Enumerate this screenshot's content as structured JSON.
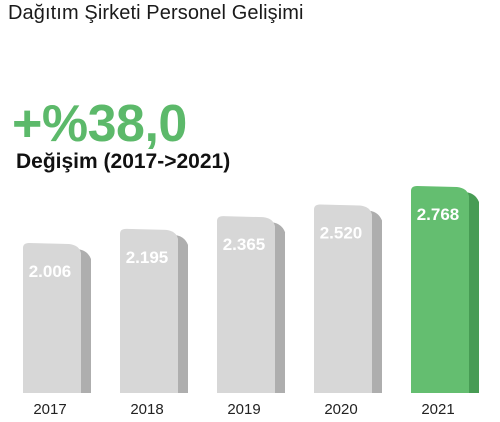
{
  "header": {
    "title": "Dağıtım Şirketi Personel Gelişimi",
    "change_value": "+%38,0",
    "change_label": "Değişim (2017->2021)"
  },
  "colors": {
    "bar_default": "#d7d7d7",
    "bar_default_side": "#aeaeae",
    "bar_highlight": "#64be70",
    "bar_highlight_side": "#479c54",
    "accent_text": "#5cb96a",
    "value_text": "#ffffff",
    "axis_text": "#222222"
  },
  "chart_data": {
    "type": "bar",
    "categories": [
      "2017",
      "2018",
      "2019",
      "2020",
      "2021"
    ],
    "values": [
      2006,
      2195,
      2365,
      2520,
      2768
    ],
    "value_labels": [
      "2.006",
      "2.195",
      "2.365",
      "2.520",
      "2.768"
    ],
    "highlight_index": 4,
    "title": "Dağıtım Şirketi Personel Gelişimi"
  }
}
